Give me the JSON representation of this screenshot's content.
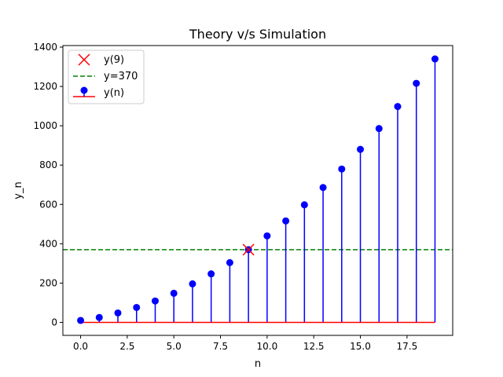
{
  "chart_data": {
    "type": "stem",
    "title": "Theory v/s Simulation",
    "xlabel": "n",
    "ylabel": "y_n",
    "xlim": [
      -0.95,
      19.95
    ],
    "ylim": [
      -66,
      1408
    ],
    "xticks": [
      0.0,
      2.5,
      5.0,
      7.5,
      10.0,
      12.5,
      15.0,
      17.5
    ],
    "xtick_labels": [
      "0.0",
      "2.5",
      "5.0",
      "7.5",
      "10.0",
      "12.5",
      "15.0",
      "17.5"
    ],
    "yticks": [
      0,
      200,
      400,
      600,
      800,
      1000,
      1200,
      1400
    ],
    "ytick_labels": [
      "0",
      "200",
      "400",
      "600",
      "800",
      "1000",
      "1200",
      "1400"
    ],
    "grid": false,
    "legend_position": "top-left",
    "legend": [
      {
        "label": "y(9)",
        "marker": "x",
        "color": "#ff0000"
      },
      {
        "label": "y=370",
        "marker": "dashed-line",
        "color": "#008000"
      },
      {
        "label": "y(n)",
        "marker": "stem",
        "color": "#0000ff",
        "baseline_color": "#ff0000"
      }
    ],
    "series": [
      {
        "name": "y(n)",
        "type": "stem",
        "color": "#0000ff",
        "baseline_color": "#ff0000",
        "x": [
          0,
          1,
          2,
          3,
          4,
          5,
          6,
          7,
          8,
          9,
          10,
          11,
          12,
          13,
          14,
          15,
          16,
          17,
          18,
          19
        ],
        "y": [
          10,
          25,
          48,
          76,
          109,
          148,
          196,
          247,
          304,
          370,
          440,
          516,
          598,
          686,
          780,
          880,
          986,
          1098,
          1216,
          1340
        ]
      },
      {
        "name": "y(9)",
        "type": "scatter",
        "marker": "x",
        "color": "#ff0000",
        "x": [
          9
        ],
        "y": [
          370
        ]
      },
      {
        "name": "y=370",
        "type": "hline",
        "linestyle": "dashed",
        "color": "#008000",
        "y": 370
      }
    ]
  }
}
